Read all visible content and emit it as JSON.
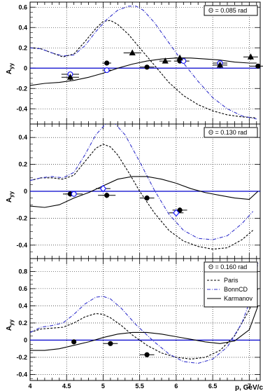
{
  "chart_data": [
    {
      "type": "line",
      "theta_label": "Θ = 0.085 rad",
      "ylabel": "A",
      "ylabel_sub": "yy",
      "xlim": [
        4.0,
        7.15
      ],
      "ylim": [
        -0.55,
        0.65
      ],
      "yticks": [
        -0.4,
        -0.2,
        0,
        0.2,
        0.4,
        0.6
      ],
      "ytick_labels": [
        "-0.4",
        "-0.2",
        "0",
        "0.2",
        "0.4",
        "0.6"
      ],
      "grid": true,
      "zero_line": {
        "y": 0,
        "color": "#0000cc"
      },
      "series": [
        {
          "style": "dashed",
          "color": "#000000",
          "x": [
            4.0,
            4.15,
            4.3,
            4.45,
            4.6,
            4.75,
            4.9,
            5.0,
            5.1,
            5.2,
            5.35,
            5.5,
            5.7,
            5.9,
            6.1,
            6.3,
            6.5,
            6.7,
            6.9,
            7.1
          ],
          "y": [
            0.2,
            0.19,
            0.15,
            0.11,
            0.14,
            0.26,
            0.39,
            0.46,
            0.47,
            0.43,
            0.33,
            0.2,
            0.03,
            -0.14,
            -0.27,
            -0.36,
            -0.42,
            -0.46,
            -0.48,
            -0.49
          ]
        },
        {
          "style": "dashdot",
          "color": "#3333cc",
          "x": [
            4.0,
            4.15,
            4.3,
            4.45,
            4.6,
            4.75,
            4.9,
            5.05,
            5.2,
            5.35,
            5.45,
            5.55,
            5.7,
            5.9,
            6.1,
            6.3,
            6.5,
            6.7,
            6.9,
            7.1
          ],
          "y": [
            0.2,
            0.19,
            0.15,
            0.12,
            0.13,
            0.22,
            0.36,
            0.48,
            0.57,
            0.61,
            0.61,
            0.57,
            0.45,
            0.25,
            0.05,
            -0.13,
            -0.29,
            -0.4,
            -0.47,
            -0.5
          ]
        },
        {
          "style": "solid",
          "color": "#000000",
          "x": [
            4.0,
            4.2,
            4.4,
            4.6,
            4.8,
            5.0,
            5.2,
            5.4,
            5.6,
            5.8,
            6.0,
            6.2,
            6.4,
            6.6,
            6.8,
            7.0,
            7.1
          ],
          "y": [
            -0.17,
            -0.15,
            -0.14,
            -0.12,
            -0.09,
            -0.05,
            0.0,
            0.04,
            0.07,
            0.09,
            0.1,
            0.1,
            0.09,
            0.08,
            0.06,
            0.05,
            0.05
          ]
        }
      ],
      "points": [
        {
          "marker": "circle",
          "x": 4.55,
          "y": -0.06,
          "xerr": 0.12,
          "yerr": 0.02
        },
        {
          "marker": "circle",
          "x": 5.05,
          "y": 0.05,
          "xerr": 0.06,
          "yerr": 0.02
        },
        {
          "marker": "circle",
          "x": 5.6,
          "y": 0.01,
          "xerr": 0.1,
          "yerr": 0.02
        },
        {
          "marker": "circle",
          "x": 6.05,
          "y": 0.07,
          "xerr": 0.08,
          "yerr": 0.02
        },
        {
          "marker": "circle",
          "x": 7.12,
          "y": 0.02,
          "xerr": 0.12,
          "yerr": 0.02
        },
        {
          "marker": "open-circle",
          "x": 4.55,
          "y": -0.06,
          "xerr": 0.12,
          "yerr": 0.02
        },
        {
          "marker": "open-circle",
          "x": 5.05,
          "y": -0.02,
          "xerr": 0.06,
          "yerr": 0.02
        },
        {
          "marker": "open-circle",
          "x": 6.1,
          "y": 0.07,
          "xerr": 0.08,
          "yerr": 0.02
        },
        {
          "marker": "open-circle",
          "x": 6.6,
          "y": 0.05,
          "xerr": 0.1,
          "yerr": 0.02
        },
        {
          "marker": "triangle",
          "x": 4.55,
          "y": -0.09,
          "xerr": 0.12,
          "yerr": 0.03
        },
        {
          "marker": "triangle",
          "x": 5.4,
          "y": 0.15,
          "xerr": 0.12,
          "yerr": 0.02
        },
        {
          "marker": "triangle",
          "x": 5.85,
          "y": 0.07,
          "xerr": 0.08,
          "yerr": 0.02
        },
        {
          "marker": "triangle",
          "x": 6.05,
          "y": 0.1,
          "xerr": 0.08,
          "yerr": 0.02
        },
        {
          "marker": "triangle",
          "x": 6.6,
          "y": 0.03,
          "xerr": 0.1,
          "yerr": 0.03
        },
        {
          "marker": "triangle",
          "x": 7.02,
          "y": 0.11,
          "xerr": 0.1,
          "yerr": 0.03
        }
      ]
    },
    {
      "type": "line",
      "theta_label": "Θ = 0.130 rad",
      "ylabel": "A",
      "ylabel_sub": "yy",
      "xlim": [
        4.0,
        7.15
      ],
      "ylim": [
        -0.5,
        0.5
      ],
      "yticks": [
        -0.4,
        -0.2,
        0,
        0.2,
        0.4
      ],
      "ytick_labels": [
        "-0.4",
        "-0.2",
        "0",
        "0.2",
        "0.4"
      ],
      "grid": true,
      "zero_line": {
        "y": 0,
        "color": "#0000cc"
      },
      "series": [
        {
          "style": "dashed",
          "color": "#000000",
          "x": [
            4.0,
            4.15,
            4.3,
            4.45,
            4.6,
            4.75,
            4.9,
            5.0,
            5.1,
            5.2,
            5.35,
            5.5,
            5.7,
            5.9,
            6.1,
            6.3,
            6.5,
            6.7,
            6.9,
            7.05
          ],
          "y": [
            0.08,
            0.1,
            0.1,
            0.09,
            0.12,
            0.22,
            0.32,
            0.35,
            0.33,
            0.27,
            0.14,
            0.0,
            -0.16,
            -0.29,
            -0.37,
            -0.41,
            -0.43,
            -0.42,
            -0.36,
            -0.29
          ]
        },
        {
          "style": "dashdot",
          "color": "#3333cc",
          "x": [
            4.0,
            4.15,
            4.3,
            4.45,
            4.6,
            4.75,
            4.9,
            5.05,
            5.15,
            5.3,
            5.5,
            5.7,
            5.9,
            6.1,
            6.3,
            6.5,
            6.7,
            6.9,
            7.05
          ],
          "y": [
            0.08,
            0.1,
            0.11,
            0.1,
            0.14,
            0.27,
            0.42,
            0.51,
            0.51,
            0.42,
            0.22,
            0.01,
            -0.17,
            -0.29,
            -0.35,
            -0.36,
            -0.33,
            -0.24,
            -0.15
          ]
        },
        {
          "style": "solid",
          "color": "#000000",
          "x": [
            4.0,
            4.2,
            4.4,
            4.6,
            4.8,
            5.0,
            5.2,
            5.4,
            5.6,
            5.8,
            6.0,
            6.2,
            6.4,
            6.6,
            6.8,
            7.0,
            7.12
          ],
          "y": [
            -0.11,
            -0.12,
            -0.1,
            -0.05,
            -0.01,
            0.04,
            0.09,
            0.11,
            0.11,
            0.09,
            0.06,
            0.02,
            -0.01,
            -0.03,
            -0.05,
            -0.06,
            0.0
          ]
        }
      ],
      "points": [
        {
          "marker": "circle",
          "x": 4.55,
          "y": -0.02,
          "xerr": 0.1,
          "yerr": 0.02
        },
        {
          "marker": "circle",
          "x": 5.05,
          "y": -0.03,
          "xerr": 0.12,
          "yerr": 0.02
        },
        {
          "marker": "circle",
          "x": 5.6,
          "y": -0.05,
          "xerr": 0.1,
          "yerr": 0.02
        },
        {
          "marker": "circle",
          "x": 6.05,
          "y": -0.14,
          "xerr": 0.1,
          "yerr": 0.02
        },
        {
          "marker": "open-circle",
          "x": 4.6,
          "y": -0.02,
          "xerr": 0.12,
          "yerr": 0.02
        },
        {
          "marker": "open-diamond",
          "x": 5.0,
          "y": 0.02,
          "xerr": 0.1,
          "yerr": 0.02
        },
        {
          "marker": "open-diamond",
          "x": 6.0,
          "y": -0.16,
          "xerr": 0.1,
          "yerr": 0.02
        }
      ]
    },
    {
      "type": "line",
      "theta_label": "Θ = 0.160 rad",
      "ylabel": "A",
      "ylabel_sub": "yy",
      "xlim": [
        4.0,
        7.15
      ],
      "ylim": [
        -0.47,
        0.95
      ],
      "yticks": [
        -0.4,
        -0.2,
        0,
        0.2,
        0.4,
        0.6,
        0.8
      ],
      "ytick_labels": [
        "-0.4",
        "-0.2",
        "0",
        "0.2",
        "0.4",
        "0.6",
        "0.8"
      ],
      "xticks": [
        4,
        4.5,
        5,
        5.5,
        6,
        6.5,
        7
      ],
      "xtick_labels": [
        "4",
        "4.5",
        "5",
        "5.5",
        "6",
        "6.5",
        "7"
      ],
      "xlabel": "p, GeV/c",
      "grid": true,
      "zero_line": {
        "y": 0,
        "color": "#0000cc"
      },
      "legend": {
        "placement": "top-right",
        "entries": [
          {
            "label": "Paris",
            "style": "dashed",
            "color": "#000000"
          },
          {
            "label": "BonnCD",
            "style": "dashdot",
            "color": "#3333cc"
          },
          {
            "label": "Karmanov",
            "style": "solid",
            "color": "#000000"
          }
        ]
      },
      "series": [
        {
          "name": "Paris",
          "style": "dashed",
          "color": "#000000",
          "x": [
            4.0,
            4.15,
            4.3,
            4.45,
            4.6,
            4.75,
            4.9,
            5.0,
            5.1,
            5.25,
            5.4,
            5.6,
            5.8,
            6.0,
            6.2,
            6.4,
            6.6,
            6.8,
            7.0,
            7.12
          ],
          "y": [
            0.09,
            0.13,
            0.14,
            0.15,
            0.2,
            0.27,
            0.31,
            0.3,
            0.26,
            0.17,
            0.06,
            -0.06,
            -0.15,
            -0.2,
            -0.22,
            -0.2,
            -0.12,
            0.05,
            0.35,
            0.6
          ]
        },
        {
          "name": "BonnCD",
          "style": "dashdot",
          "color": "#3333cc",
          "x": [
            4.0,
            4.15,
            4.3,
            4.45,
            4.6,
            4.75,
            4.9,
            5.0,
            5.1,
            5.25,
            5.45,
            5.7,
            5.9,
            6.1,
            6.3,
            6.5,
            6.7,
            6.9,
            7.05,
            7.12
          ],
          "y": [
            0.09,
            0.15,
            0.17,
            0.2,
            0.3,
            0.42,
            0.5,
            0.51,
            0.48,
            0.37,
            0.18,
            -0.02,
            -0.16,
            -0.25,
            -0.27,
            -0.22,
            -0.08,
            0.2,
            0.55,
            0.9
          ]
        },
        {
          "name": "Karmanov",
          "style": "solid",
          "color": "#000000",
          "x": [
            4.0,
            4.2,
            4.4,
            4.6,
            4.8,
            5.0,
            5.2,
            5.4,
            5.6,
            5.8,
            6.0,
            6.2,
            6.4,
            6.6,
            6.8,
            7.0,
            7.12
          ],
          "y": [
            -0.12,
            -0.12,
            -0.1,
            -0.06,
            -0.02,
            0.03,
            0.07,
            0.09,
            0.09,
            0.07,
            0.04,
            0.01,
            -0.02,
            -0.04,
            -0.01,
            0.12,
            0.4
          ]
        }
      ],
      "points": [
        {
          "marker": "circle",
          "x": 4.6,
          "y": -0.02,
          "xerr": 0.0,
          "yerr": 0.01
        },
        {
          "marker": "circle",
          "x": 5.1,
          "y": -0.04,
          "xerr": 0.1,
          "yerr": 0.01
        },
        {
          "marker": "circle",
          "x": 5.6,
          "y": -0.17,
          "xerr": 0.1,
          "yerr": 0.01
        }
      ]
    }
  ]
}
